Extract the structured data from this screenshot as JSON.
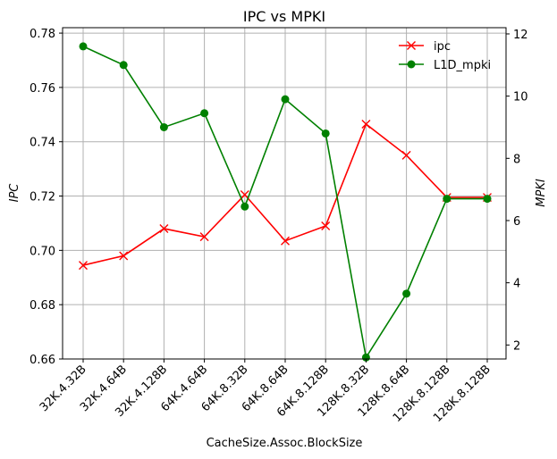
{
  "chart_data": {
    "type": "line",
    "title": "IPC vs MPKI",
    "xlabel": "CacheSize.Assoc.BlockSize",
    "ylabel_left": "IPC",
    "ylabel_right": "MPKI",
    "categories": [
      "32K.4.32B",
      "32K.4.64B",
      "32K.4.128B",
      "64K.4.64B",
      "64K.8.32B",
      "64K.8.64B",
      "64K.8.128B",
      "128K.8.32B",
      "128K.8.64B",
      "128K.8.128B",
      "128K.8.128B"
    ],
    "ylim_left": [
      0.66,
      0.782
    ],
    "ylim_right": [
      1.55,
      12.2
    ],
    "yticks_left": [
      "0.66",
      "0.68",
      "0.70",
      "0.72",
      "0.74",
      "0.76",
      "0.78"
    ],
    "yticks_right": [
      "2",
      "4",
      "6",
      "8",
      "10",
      "12"
    ],
    "grid": true,
    "legend_position": "upper-right",
    "series": [
      {
        "name": "ipc",
        "axis": "left",
        "color": "#ff0000",
        "marker": "x",
        "values": [
          0.6945,
          0.698,
          0.708,
          0.705,
          0.7205,
          0.7035,
          0.709,
          0.7465,
          0.735,
          0.7195,
          0.7195
        ]
      },
      {
        "name": "L1D_mpki",
        "axis": "right",
        "color": "#008000",
        "marker": "o",
        "values": [
          11.6,
          11.0,
          9.0,
          9.45,
          6.45,
          9.9,
          8.8,
          1.6,
          3.65,
          6.7,
          6.7
        ]
      }
    ]
  }
}
